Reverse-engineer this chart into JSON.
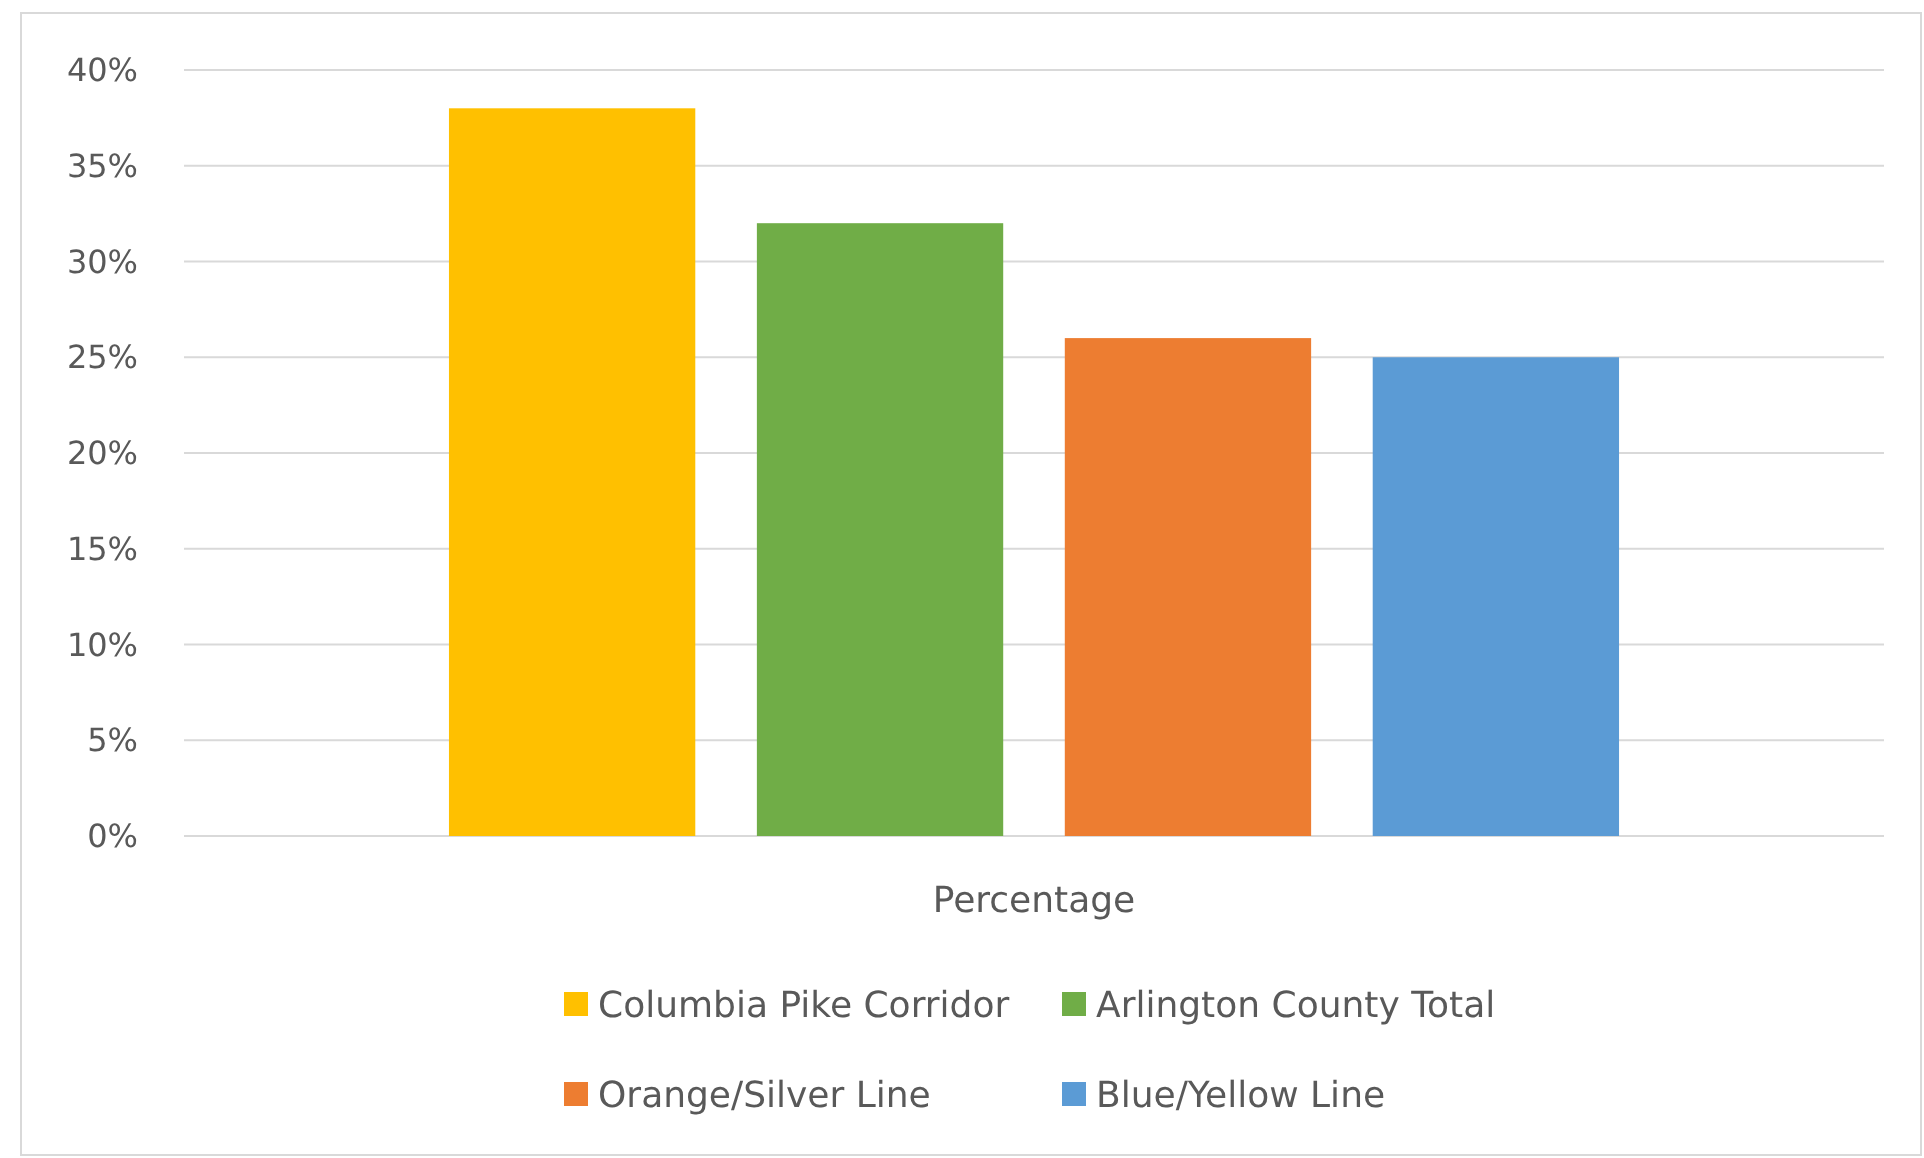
{
  "chart_data": {
    "type": "bar",
    "categories": [
      "Percentage"
    ],
    "series": [
      {
        "name": "Columbia Pike Corridor",
        "color": "#ffc000",
        "values": [
          38
        ]
      },
      {
        "name": "Arlington County Total",
        "color": "#70ad47",
        "values": [
          32
        ]
      },
      {
        "name": "Orange/Silver Line",
        "color": "#ed7d31",
        "values": [
          26
        ]
      },
      {
        "name": "Blue/Yellow Line",
        "color": "#5b9bd5",
        "values": [
          25
        ]
      }
    ],
    "ylim": [
      0,
      40
    ],
    "yticks": [
      {
        "value": 0,
        "label": "0%"
      },
      {
        "value": 5,
        "label": "5%"
      },
      {
        "value": 10,
        "label": "10%"
      },
      {
        "value": 15,
        "label": "15%"
      },
      {
        "value": 20,
        "label": "20%"
      },
      {
        "value": 25,
        "label": "25%"
      },
      {
        "value": 30,
        "label": "30%"
      },
      {
        "value": 35,
        "label": "35%"
      },
      {
        "value": 40,
        "label": "40%"
      }
    ],
    "grid": "y",
    "legend": "bottom"
  }
}
